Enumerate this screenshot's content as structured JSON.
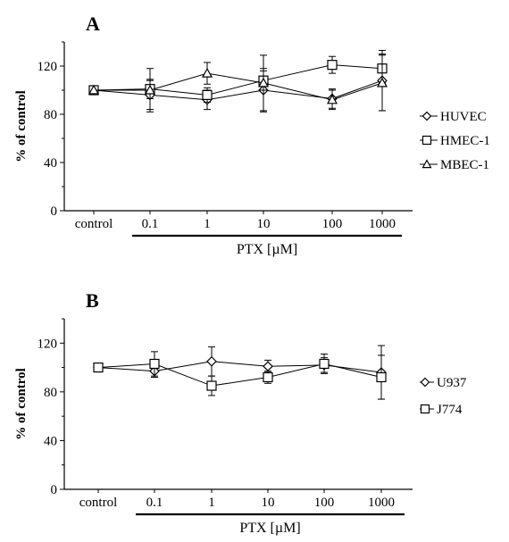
{
  "chart_data": [
    {
      "type": "line",
      "panel_label": "A",
      "ylabel": "% of control",
      "xlabel": "PTX [µM]",
      "categories": [
        "control",
        "0.1",
        "1",
        "10",
        "100",
        "1000"
      ],
      "ylim": [
        0,
        140
      ],
      "yticks": [
        0,
        40,
        80,
        120
      ],
      "grid": false,
      "legend_position": "right",
      "series": [
        {
          "name": "HUVEC",
          "marker": "diamond",
          "values": [
            100,
            96,
            92,
            100,
            93,
            108
          ],
          "errors": [
            0,
            12,
            8,
            18,
            8,
            25
          ]
        },
        {
          "name": "HMEC-1",
          "marker": "square",
          "values": [
            100,
            101,
            96,
            108,
            121,
            118
          ],
          "errors": [
            0,
            8,
            6,
            8,
            7,
            12
          ]
        },
        {
          "name": "MBEC-1",
          "marker": "triangle",
          "values": [
            100,
            100,
            114,
            106,
            92,
            106
          ],
          "errors": [
            0,
            18,
            9,
            23,
            8,
            23
          ]
        }
      ]
    },
    {
      "type": "line",
      "panel_label": "B",
      "ylabel": "% of control",
      "xlabel": "PTX [µM]",
      "categories": [
        "control",
        "0.1",
        "1",
        "10",
        "100",
        "1000"
      ],
      "ylim": [
        0,
        140
      ],
      "yticks": [
        0,
        40,
        80,
        120
      ],
      "grid": false,
      "legend_position": "right",
      "series": [
        {
          "name": "U937",
          "marker": "diamond",
          "values": [
            100,
            97,
            105,
            101,
            102,
            96
          ],
          "errors": [
            0,
            5,
            12,
            5,
            6,
            22
          ]
        },
        {
          "name": "J774",
          "marker": "square",
          "values": [
            100,
            103,
            85,
            92,
            103,
            92
          ],
          "errors": [
            0,
            10,
            8,
            5,
            8,
            18
          ]
        }
      ]
    }
  ]
}
